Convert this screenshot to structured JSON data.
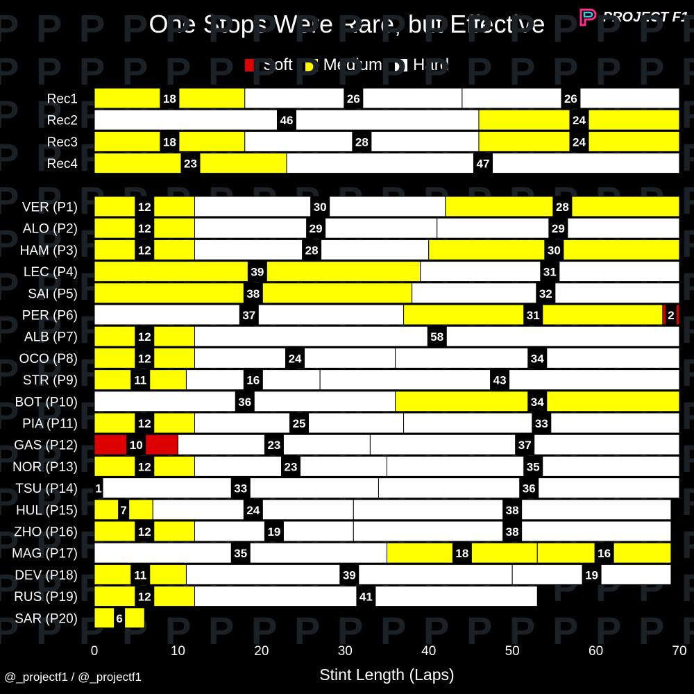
{
  "header": {
    "title": "One Stops Were Rare, but Effective",
    "brand": "PROJECT F1",
    "social": "@_projectf1 / @_projectf1"
  },
  "colors": {
    "background": "#000000",
    "Soft": "#dd0000",
    "Medium": "#ffff00",
    "Hard": "#ffffff",
    "label_box": "#000000"
  },
  "chart_data": {
    "type": "bar",
    "orientation": "horizontal",
    "stacked": true,
    "title": "One Stops Were Rare, but Effective",
    "xlabel": "Stint Length (Laps)",
    "ylabel": "",
    "xlim": [
      0,
      70
    ],
    "xticks": [
      0,
      10,
      20,
      30,
      40,
      50,
      60,
      70
    ],
    "legend": {
      "position": "top-center",
      "entries": [
        "Soft",
        "Medium",
        "Hard"
      ]
    },
    "groups": [
      {
        "name": "recommended",
        "rows": [
          {
            "label": "Rec1",
            "stints": [
              {
                "compound": "Medium",
                "laps": 18
              },
              {
                "compound": "Hard",
                "laps": 26
              },
              {
                "compound": "Hard",
                "laps": 26
              }
            ]
          },
          {
            "label": "Rec2",
            "stints": [
              {
                "compound": "Hard",
                "laps": 46
              },
              {
                "compound": "Medium",
                "laps": 24
              }
            ]
          },
          {
            "label": "Rec3",
            "stints": [
              {
                "compound": "Medium",
                "laps": 18
              },
              {
                "compound": "Hard",
                "laps": 28
              },
              {
                "compound": "Medium",
                "laps": 24
              }
            ]
          },
          {
            "label": "Rec4",
            "stints": [
              {
                "compound": "Medium",
                "laps": 23
              },
              {
                "compound": "Hard",
                "laps": 47
              }
            ]
          }
        ]
      },
      {
        "name": "drivers",
        "rows": [
          {
            "label": "VER (P1)",
            "stints": [
              {
                "compound": "Medium",
                "laps": 12
              },
              {
                "compound": "Hard",
                "laps": 30
              },
              {
                "compound": "Medium",
                "laps": 28
              }
            ]
          },
          {
            "label": "ALO (P2)",
            "stints": [
              {
                "compound": "Medium",
                "laps": 12
              },
              {
                "compound": "Hard",
                "laps": 29
              },
              {
                "compound": "Hard",
                "laps": 29
              }
            ]
          },
          {
            "label": "HAM (P3)",
            "stints": [
              {
                "compound": "Medium",
                "laps": 12
              },
              {
                "compound": "Hard",
                "laps": 28
              },
              {
                "compound": "Medium",
                "laps": 30
              }
            ]
          },
          {
            "label": "LEC (P4)",
            "stints": [
              {
                "compound": "Medium",
                "laps": 39
              },
              {
                "compound": "Hard",
                "laps": 31
              }
            ]
          },
          {
            "label": "SAI (P5)",
            "stints": [
              {
                "compound": "Medium",
                "laps": 38
              },
              {
                "compound": "Hard",
                "laps": 32
              }
            ]
          },
          {
            "label": "PER (P6)",
            "stints": [
              {
                "compound": "Hard",
                "laps": 37
              },
              {
                "compound": "Medium",
                "laps": 31
              },
              {
                "compound": "Soft",
                "laps": 2
              }
            ]
          },
          {
            "label": "ALB (P7)",
            "stints": [
              {
                "compound": "Medium",
                "laps": 12
              },
              {
                "compound": "Hard",
                "laps": 58
              }
            ]
          },
          {
            "label": "OCO (P8)",
            "stints": [
              {
                "compound": "Medium",
                "laps": 12
              },
              {
                "compound": "Hard",
                "laps": 24
              },
              {
                "compound": "Hard",
                "laps": 34
              }
            ]
          },
          {
            "label": "STR (P9)",
            "stints": [
              {
                "compound": "Medium",
                "laps": 11
              },
              {
                "compound": "Hard",
                "laps": 16
              },
              {
                "compound": "Hard",
                "laps": 43
              }
            ]
          },
          {
            "label": "BOT (P10)",
            "stints": [
              {
                "compound": "Hard",
                "laps": 36
              },
              {
                "compound": "Medium",
                "laps": 34
              }
            ]
          },
          {
            "label": "PIA (P11)",
            "stints": [
              {
                "compound": "Medium",
                "laps": 12
              },
              {
                "compound": "Hard",
                "laps": 25
              },
              {
                "compound": "Hard",
                "laps": 33
              }
            ]
          },
          {
            "label": "GAS (P12)",
            "stints": [
              {
                "compound": "Soft",
                "laps": 10
              },
              {
                "compound": "Hard",
                "laps": 23
              },
              {
                "compound": "Hard",
                "laps": 37
              }
            ]
          },
          {
            "label": "NOR (P13)",
            "stints": [
              {
                "compound": "Medium",
                "laps": 12
              },
              {
                "compound": "Hard",
                "laps": 23
              },
              {
                "compound": "Hard",
                "laps": 35
              }
            ]
          },
          {
            "label": "TSU (P14)",
            "stints": [
              {
                "compound": "Hard",
                "laps": 1
              },
              {
                "compound": "Hard",
                "laps": 33
              },
              {
                "compound": "Hard",
                "laps": 36
              }
            ]
          },
          {
            "label": "HUL (P15)",
            "stints": [
              {
                "compound": "Medium",
                "laps": 7
              },
              {
                "compound": "Hard",
                "laps": 24
              },
              {
                "compound": "Hard",
                "laps": 38
              }
            ]
          },
          {
            "label": "ZHO (P16)",
            "stints": [
              {
                "compound": "Medium",
                "laps": 12
              },
              {
                "compound": "Hard",
                "laps": 19
              },
              {
                "compound": "Hard",
                "laps": 38
              }
            ]
          },
          {
            "label": "MAG (P17)",
            "stints": [
              {
                "compound": "Hard",
                "laps": 35
              },
              {
                "compound": "Medium",
                "laps": 18
              },
              {
                "compound": "Medium",
                "laps": 16
              }
            ]
          },
          {
            "label": "DEV (P18)",
            "stints": [
              {
                "compound": "Medium",
                "laps": 11
              },
              {
                "compound": "Hard",
                "laps": 39
              },
              {
                "compound": "Hard",
                "laps": 19
              }
            ]
          },
          {
            "label": "RUS (P19)",
            "stints": [
              {
                "compound": "Medium",
                "laps": 12
              },
              {
                "compound": "Hard",
                "laps": 41
              }
            ]
          },
          {
            "label": "SAR (P20)",
            "stints": [
              {
                "compound": "Medium",
                "laps": 6
              }
            ]
          }
        ]
      }
    ]
  }
}
